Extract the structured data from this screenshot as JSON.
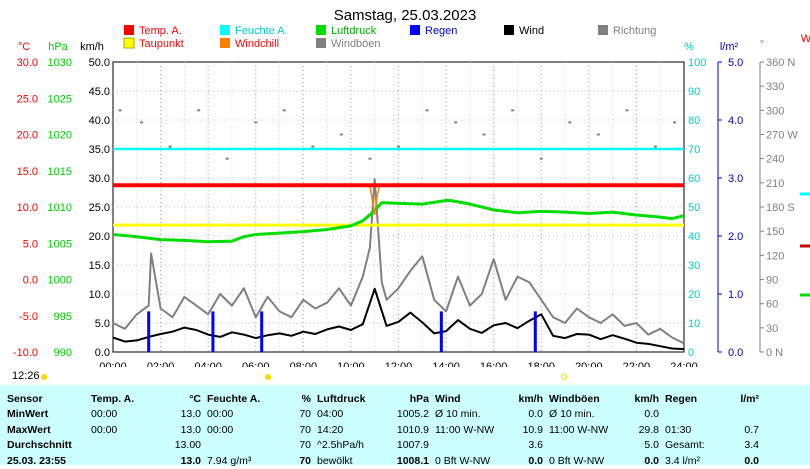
{
  "title": "Samstag, 25.03.2023",
  "axes": {
    "temp": {
      "label": "°C",
      "color": "#ff0000",
      "ticks": [
        "30.0",
        "25.0",
        "20.0",
        "15.0",
        "10.0",
        "5.0",
        "0.0",
        "-5.0",
        "-10.0"
      ]
    },
    "pressure": {
      "label": "hPa",
      "color": "#00cc00",
      "ticks": [
        "1030",
        "1025",
        "1020",
        "1015",
        "1010",
        "1005",
        "1000",
        "995",
        "990"
      ]
    },
    "wind": {
      "label": "km/h",
      "color": "#000000",
      "ticks": [
        "50.0",
        "45.0",
        "40.0",
        "35.0",
        "30.0",
        "25.0",
        "20.0",
        "15.0",
        "10.0",
        "5.0",
        "0.0"
      ]
    },
    "humidity": {
      "label": "%",
      "color": "#00cccc",
      "ticks": [
        "100",
        "90",
        "80",
        "70",
        "60",
        "50",
        "40",
        "30",
        "20",
        "10",
        "0"
      ]
    },
    "rain": {
      "label": "l/m²",
      "color": "#0000cc",
      "ticks": [
        "5.0",
        "4.0",
        "3.0",
        "2.0",
        "1.0",
        "0.0"
      ]
    },
    "direction": {
      "label": "°",
      "color": "#808080",
      "ticks": [
        "360 N",
        "330",
        "300",
        "270 W",
        "240",
        "210",
        "180 S",
        "150",
        "120",
        "90",
        "60",
        "30",
        "0 N"
      ]
    },
    "extra": {
      "label": "W",
      "color": "#ff0000"
    },
    "time_ticks": [
      "00:00",
      "02:00",
      "04:00",
      "06:00",
      "08:00",
      "10:00",
      "12:00",
      "14:00",
      "16:00",
      "18:00",
      "20:00",
      "22:00",
      "24:00"
    ]
  },
  "legend": [
    {
      "label": "Temp. A.",
      "color": "#ff0000"
    },
    {
      "label": "Feuchte A.",
      "color": "#00ffff"
    },
    {
      "label": "Luftdruck",
      "color": "#00dd00"
    },
    {
      "label": "Regen",
      "color": "#0000ff"
    },
    {
      "label": "Wind",
      "color": "#000000"
    },
    {
      "label": "Richtung",
      "color": "#808080"
    },
    {
      "label": "Taupunkt",
      "color": "#ffff00"
    },
    {
      "label": "Windchill",
      "color": "#ff8000"
    },
    {
      "label": "Windböen",
      "color": "#808080"
    }
  ],
  "sun": {
    "sunrise_label": "12:26"
  },
  "chart_data": {
    "type": "line",
    "x_unit": "hour of day",
    "xlim": [
      0,
      24
    ],
    "series": [
      {
        "name": "Temp. A.",
        "axis": "°C",
        "color": "#ff0000",
        "x": [
          0,
          24
        ],
        "values": [
          13.0,
          13.0
        ]
      },
      {
        "name": "Taupunkt",
        "axis": "°C",
        "color": "#ffff00",
        "x": [
          0,
          24
        ],
        "values": [
          7.5,
          7.5
        ]
      },
      {
        "name": "Feuchte A.",
        "axis": "%",
        "color": "#00ffff",
        "x": [
          0,
          24
        ],
        "values": [
          70,
          70
        ]
      },
      {
        "name": "Luftdruck",
        "axis": "hPa",
        "color": "#00dd00",
        "x": [
          0,
          1,
          2,
          3,
          4,
          5,
          5.5,
          6,
          7,
          8,
          9,
          10,
          10.5,
          11,
          11.3,
          12,
          13,
          14,
          14.2,
          15,
          16,
          17,
          18,
          19,
          20,
          21,
          22,
          23,
          23.5,
          24
        ],
        "values": [
          1006.2,
          1005.9,
          1005.5,
          1005.4,
          1005.2,
          1005.3,
          1005.9,
          1006.2,
          1006.4,
          1006.6,
          1006.9,
          1007.4,
          1008.1,
          1009.5,
          1010.6,
          1010.5,
          1010.4,
          1010.9,
          1010.9,
          1010.4,
          1009.6,
          1009.2,
          1009.4,
          1009.3,
          1009.1,
          1009.3,
          1008.9,
          1008.6,
          1008.4,
          1008.8
        ]
      },
      {
        "name": "Wind",
        "axis": "km/h",
        "color": "#000000",
        "x": [
          0,
          0.5,
          1,
          1.5,
          2,
          2.5,
          3,
          3.5,
          4,
          4.5,
          5,
          5.5,
          6,
          6.5,
          7,
          7.5,
          8,
          8.5,
          9,
          9.5,
          10,
          10.5,
          11,
          11.5,
          12,
          12.5,
          13,
          13.5,
          14,
          14.5,
          15,
          15.5,
          16,
          16.5,
          17,
          17.5,
          18,
          18.5,
          19,
          19.5,
          20,
          20.5,
          21,
          21.5,
          22,
          22.5,
          23,
          23.5,
          24
        ],
        "values": [
          2.5,
          1.8,
          2.0,
          2.6,
          3.1,
          3.5,
          4.2,
          3.8,
          3.0,
          2.6,
          3.4,
          3.0,
          2.4,
          2.9,
          3.2,
          2.8,
          3.5,
          3.1,
          3.9,
          4.4,
          3.8,
          4.8,
          10.9,
          4.5,
          5.2,
          6.8,
          5.1,
          3.2,
          3.6,
          5.5,
          4.0,
          3.3,
          4.6,
          5.0,
          4.1,
          5.4,
          6.5,
          2.8,
          2.4,
          3.1,
          3.0,
          2.2,
          2.9,
          2.3,
          1.6,
          1.4,
          1.0,
          0.6,
          0.5
        ]
      },
      {
        "name": "Windböen",
        "axis": "km/h",
        "color": "#808080",
        "x": [
          0,
          0.5,
          1,
          1.5,
          1.6,
          2,
          2.5,
          3,
          3.5,
          4,
          4.5,
          5,
          5.5,
          6,
          6.5,
          7,
          7.5,
          8,
          8.5,
          9,
          9.5,
          10,
          10.5,
          10.8,
          11,
          11.3,
          11.5,
          12,
          12.5,
          13,
          13.5,
          14,
          14.5,
          15,
          15.5,
          16,
          16.5,
          17,
          17.5,
          18,
          18.5,
          19,
          19.5,
          20,
          20.5,
          21,
          21.5,
          22,
          22.5,
          23,
          23.5,
          24
        ],
        "values": [
          5.0,
          4.0,
          6.5,
          8.0,
          17.0,
          7.5,
          6.0,
          9.5,
          8.0,
          6.5,
          10.0,
          8.0,
          11.0,
          6.0,
          9.5,
          7.0,
          6.0,
          9.0,
          7.5,
          8.5,
          11.0,
          8.0,
          13.0,
          18.0,
          29.8,
          12.0,
          9.0,
          11.0,
          14.0,
          16.5,
          9.0,
          7.0,
          13.0,
          8.0,
          10.0,
          16.0,
          9.0,
          13.0,
          12.0,
          9.0,
          6.0,
          5.0,
          7.5,
          6.0,
          5.0,
          6.5,
          4.5,
          5.0,
          3.0,
          4.0,
          2.5,
          1.5
        ]
      },
      {
        "name": "Windchill",
        "axis": "°C",
        "color": "#ff8000",
        "x": [
          10.8,
          10.9,
          11.0,
          11.1,
          11.2
        ],
        "values": [
          13.0,
          11.0,
          9.0,
          11.5,
          13.0
        ]
      },
      {
        "name": "Regen",
        "axis": "l/m²",
        "color": "#0000ff",
        "type": "bar",
        "x": [
          1.5,
          4.2,
          6.25,
          13.8,
          17.75
        ],
        "values": [
          0.7,
          0.7,
          0.7,
          0.7,
          0.7
        ]
      },
      {
        "name": "Richtung",
        "axis": "°",
        "color": "#808080",
        "type": "scatter",
        "x": [
          0.3,
          1.2,
          2.4,
          3.6,
          4.8,
          6.0,
          7.2,
          8.4,
          9.6,
          10.8,
          12.0,
          13.2,
          14.4,
          15.6,
          16.8,
          18.0,
          19.2,
          20.4,
          21.6,
          22.8,
          23.6
        ],
        "values": [
          300,
          285,
          255,
          300,
          240,
          285,
          300,
          255,
          270,
          240,
          255,
          300,
          285,
          270,
          300,
          240,
          285,
          270,
          300,
          255,
          285
        ]
      }
    ]
  },
  "table": {
    "headers": [
      "Sensor",
      "Temp. A.",
      "°C",
      "Feuchte A.",
      "%",
      "Luftdruck",
      "hPa",
      "Wind",
      "km/h",
      "Windböen",
      "km/h",
      "Regen",
      "l/m²"
    ],
    "rows": [
      [
        "MinWert",
        "00:00",
        "13.0",
        "00:00",
        "70",
        "04:00",
        "1005.2",
        "Ø 10 min.",
        "0.0",
        "Ø 10 min.",
        "0.0",
        "",
        ""
      ],
      [
        "MaxWert",
        "00:00",
        "13.0",
        "00:00",
        "70",
        "14:20",
        "1010.9",
        "11:00 W-NW",
        "10.9",
        "11:00 W-NW",
        "29.8",
        "01:30",
        "0.7"
      ],
      [
        "Durchschnitt",
        "",
        "13.00",
        "",
        "70",
        "^2.5hPa/h",
        "1007.9",
        "",
        "3.6",
        "",
        "5.0",
        "Gesamt:",
        "3.4"
      ],
      [
        "25.03. 23:55",
        "",
        "13.0",
        "7.94 g/m³",
        "70",
        "bewölkt",
        "1008.1",
        "0 Bft W-NW",
        "0.0",
        "0 Bft W-NW",
        "0.0",
        "3.4 l/m²",
        "0.0"
      ]
    ]
  }
}
